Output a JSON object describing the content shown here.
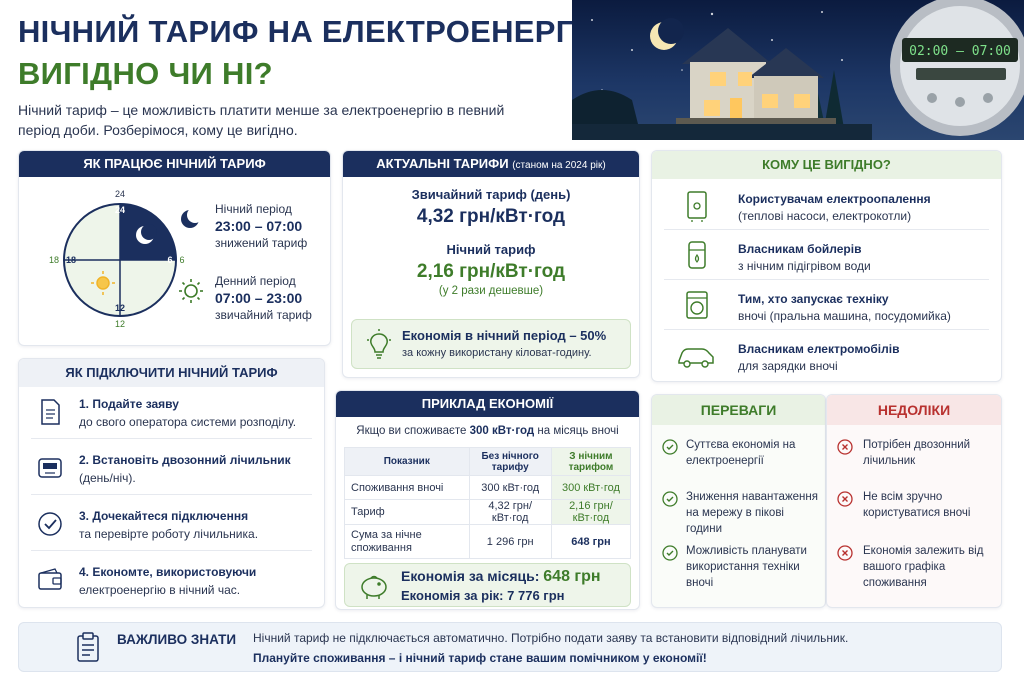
{
  "header": {
    "title_line1": "НІЧНИЙ ТАРИФ НА ЕЛЕКТРОЕНЕРГІЮ:",
    "title_line2": "ВИГІДНО ЧИ НІ?",
    "subtitle": "Нічний тариф – це можливість платити менше за електроенергію в певний період доби. Розберімося, кому це вигідно."
  },
  "hero": {
    "meter_display": "02:00 – 07:00"
  },
  "how_it_works": {
    "heading": "ЯК ПРАЦЮЄ НІЧНИЙ ТАРИФ",
    "clock": {
      "top": "24",
      "right": "6",
      "bottom": "12",
      "left": "18"
    },
    "night": {
      "label": "Нічний період",
      "time": "23:00 – 07:00",
      "note": "знижений тариф"
    },
    "day": {
      "label": "Денний період",
      "time": "07:00 – 23:00",
      "note": "звичайний тариф"
    }
  },
  "tariffs": {
    "heading": "АКТУАЛЬНІ ТАРИФИ",
    "heading_note": "(станом на 2024 рік)",
    "regular_label": "Звичайний тариф (день)",
    "regular_value": "4,32 грн/кВт·год",
    "night_label": "Нічний тариф",
    "night_value": "2,16 грн/кВт·год",
    "night_note": "(у 2 рази дешевше)",
    "saving_title": "Економія в нічний період – 50%",
    "saving_note": "за кожну використану кіловат-годину."
  },
  "how_connect": {
    "heading": "ЯК ПІДКЛЮЧИТИ НІЧНИЙ ТАРИФ",
    "steps": [
      {
        "title": "1. Подайте заяву",
        "text": "до свого оператора системи розподілу."
      },
      {
        "title": "2. Встановіть двозонний лічильник",
        "text": "(день/ніч)."
      },
      {
        "title": "3. Дочекайтеся підключення",
        "text": "та перевірте роботу лічильника."
      },
      {
        "title": "4. Економте, використовуючи",
        "text": "електроенергію в нічний час."
      }
    ]
  },
  "example": {
    "heading": "ПРИКЛАД ЕКОНОМІЇ",
    "intro_prefix": "Якщо ви споживаєте ",
    "intro_bold": "300 кВт·год",
    "intro_suffix": " на місяць вночі",
    "columns": [
      "Показник",
      "Без нічного тарифу",
      "З нічним тарифом"
    ],
    "rows": [
      [
        "Споживання вночі",
        "300 кВт·год",
        "300 кВт·год"
      ],
      [
        "Тариф",
        "4,32 грн/кВт·год",
        "2,16 грн/кВт·год"
      ],
      [
        "Сума за нічне споживання",
        "1 296 грн",
        "648 грн"
      ]
    ],
    "month_label": "Економія за місяць: ",
    "month_value": "648 грн",
    "year_label": "Економія за рік: ",
    "year_value": "7 776 грн"
  },
  "who": {
    "heading": "КОМУ ЦЕ ВИГІДНО?",
    "items": [
      {
        "title": "Користувачам електроопалення",
        "text": "(теплові насоси, електрокотли)",
        "icon": "boiler-icon"
      },
      {
        "title": "Власникам бойлерів",
        "text": "з нічним підігрівом води",
        "icon": "water-heater-icon"
      },
      {
        "title": "Тим, хто запускає техніку",
        "text": "вночі (пральна машина, посудомийка)",
        "icon": "washing-machine-icon"
      },
      {
        "title": "Власникам електромобілів",
        "text": "для зарядки вночі",
        "icon": "car-icon"
      }
    ]
  },
  "pros": {
    "heading": "ПЕРЕВАГИ",
    "items": [
      "Суттєва економія на електроенергії",
      "Зниження навантаження на мережу в пікові години",
      "Можливість планувати використання техніки вночі"
    ]
  },
  "cons": {
    "heading": "НЕДОЛІКИ",
    "items": [
      "Потрібен двозонний лічильник",
      "Не всім зручно користуватися вночі",
      "Економія залежить від вашого графіка споживання"
    ]
  },
  "important": {
    "title": "ВАЖЛИВО ЗНАТИ",
    "line1": "Нічний тариф не підключається автоматично. Потрібно подати заяву та встановити відповідний лічильник.",
    "line2": "Плануйте споживання – і нічний тариф стане вашим помічником у економії!"
  },
  "colors": {
    "navy": "#1b2f5e",
    "green": "#3e7c2a",
    "red": "#b8312f"
  }
}
